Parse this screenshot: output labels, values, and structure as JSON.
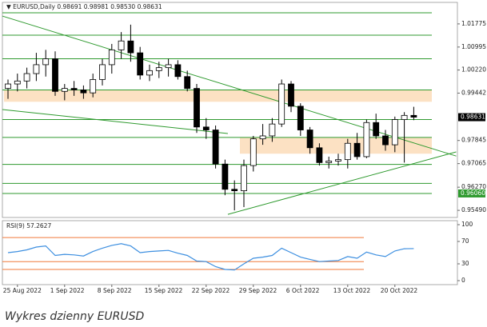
{
  "caption": "Wykres dzienny EURUSD",
  "chart_data": {
    "type": "candlestick",
    "symbol": "EURUSD,Daily",
    "last_ohlc": [
      0.98691,
      0.98981,
      {
        "value": 0.9853,
        "label": "0.98530"
      },
      0.98631
    ],
    "categories": [
      null,
      "25 Aug 2022",
      null,
      null,
      null,
      null,
      "1 Sep 2022",
      null,
      null,
      null,
      null,
      "8 Sep 2022",
      null,
      null,
      null,
      null,
      "15 Sep 2022",
      null,
      null,
      null,
      null,
      "22 Sep 2022",
      null,
      null,
      null,
      null,
      "29 Sep 2022",
      null,
      null,
      null,
      null,
      "6 Oct 2022",
      null,
      null,
      null,
      null,
      "13 Oct 2022",
      null,
      null,
      null,
      null,
      "20 Oct 2022",
      null,
      null
    ],
    "open": [
      0.996,
      0.9975,
      0.9985,
      1.001,
      1.004,
      1.006,
      0.995,
      0.996,
      0.9955,
      0.9945,
      0.999,
      1.004,
      1.009,
      1.012,
      1.008,
      1.0005,
      1.002,
      1.003,
      1.004,
      1.0,
      0.996,
      0.983,
      0.982,
      0.9705,
      0.962,
      0.9615,
      0.97,
      0.979,
      0.98,
      0.984,
      0.9975,
      0.99,
      0.982,
      0.976,
      0.971,
      0.9715,
      0.972,
      0.9775,
      0.973,
      0.9845,
      0.98,
      0.977,
      0.9855,
      0.98691
    ],
    "high": [
      0.999,
      1.001,
      1.003,
      1.008,
      1.009,
      1.0085,
      0.9975,
      0.9985,
      0.997,
      1.001,
      1.006,
      1.011,
      1.015,
      1.0175,
      1.01,
      1.004,
      1.005,
      1.006,
      1.0055,
      1.002,
      0.9975,
      0.986,
      0.9835,
      0.972,
      0.965,
      0.972,
      0.98,
      0.984,
      0.986,
      0.999,
      0.9985,
      0.991,
      0.983,
      0.9775,
      0.973,
      0.974,
      0.979,
      0.981,
      0.9855,
      0.9875,
      0.982,
      0.9865,
      0.988,
      0.98981
    ],
    "low": [
      0.9925,
      0.995,
      0.996,
      0.9985,
      1.0,
      0.9935,
      0.992,
      0.9935,
      0.9925,
      0.993,
      0.997,
      1.001,
      1.006,
      1.005,
      0.999,
      0.9985,
      0.9995,
      1.0,
      0.999,
      0.995,
      0.981,
      0.979,
      0.969,
      0.96,
      0.9549,
      0.956,
      0.968,
      0.977,
      0.978,
      0.983,
      0.988,
      0.98,
      0.974,
      0.97,
      0.969,
      0.97,
      0.969,
      0.972,
      0.9725,
      0.979,
      0.975,
      0.9745,
      0.971,
      0.9853
    ],
    "close": [
      0.9975,
      0.9985,
      1.001,
      1.004,
      1.006,
      0.995,
      0.996,
      0.9955,
      0.9945,
      0.999,
      1.004,
      1.009,
      1.012,
      1.008,
      1.0005,
      1.002,
      1.003,
      1.004,
      1.0,
      0.996,
      0.983,
      0.982,
      0.9705,
      0.962,
      0.9615,
      0.97,
      0.979,
      0.98,
      0.984,
      0.9975,
      0.99,
      0.982,
      0.976,
      0.971,
      0.9715,
      0.972,
      0.9775,
      0.973,
      0.9845,
      0.98,
      0.977,
      0.9855,
      0.98691,
      0.98631
    ],
    "up_color": "#ffffff",
    "down_color": "#000000",
    "line_color": "#2f9a2f",
    "zone_color": "#fcdcb8",
    "ylim": [
      0.9525,
      1.025
    ],
    "yticks": [
      1.01775,
      1.00995,
      {
        "value": 1.0022,
        "label": "1.00220"
      },
      0.99442,
      0.97845,
      0.97065,
      {
        "value": 0.9627,
        "label": "0.96270"
      },
      {
        "value": 0.9549,
        "label": "0.95490"
      }
    ],
    "price_labels": [
      {
        "value": 0.98631,
        "label": "0.98631",
        "color": "#000000"
      },
      {
        "value": 0.9606,
        "label": "0.96060",
        "color": "#2f9a2f"
      }
    ],
    "hlines": [
      1.0215,
      1.01395,
      1.006,
      0.9955,
      0.9855,
      0.9795,
      0.9704,
      0.964,
      0.9606
    ],
    "zones": [
      {
        "from": 0,
        "range": [
          0.9915,
          0.9955
        ]
      },
      {
        "from": 25,
        "range": [
          0.974,
          0.9795
        ]
      }
    ],
    "trendlines": [
      [
        [
          -0.6,
          1.0204
        ],
        [
          47.5,
          0.9732
        ]
      ],
      [
        [
          -0.6,
          0.9889
        ],
        [
          23.3,
          0.9808
        ]
      ],
      [
        [
          23.3,
          0.95355
        ],
        [
          47.5,
          0.97459
        ]
      ]
    ],
    "rsi": {
      "name": "RSI(9)",
      "last": 57.2627,
      "color": "#3d8fe0",
      "level_color": "#f07a3a",
      "values": [
        50,
        52,
        55,
        60,
        62,
        45,
        47,
        46,
        44,
        52,
        58,
        63,
        66,
        62,
        50,
        52,
        53,
        54,
        49,
        45,
        35,
        34,
        25,
        20,
        19,
        30,
        40,
        42,
        45,
        58,
        50,
        42,
        38,
        34,
        35,
        36,
        43,
        40,
        51,
        46,
        43,
        53,
        57,
        57.2627
      ],
      "ylim": [
        0,
        100
      ],
      "yticks": [
        100,
        70,
        30,
        0
      ],
      "levels": [
        77,
        34,
        20
      ]
    }
  }
}
